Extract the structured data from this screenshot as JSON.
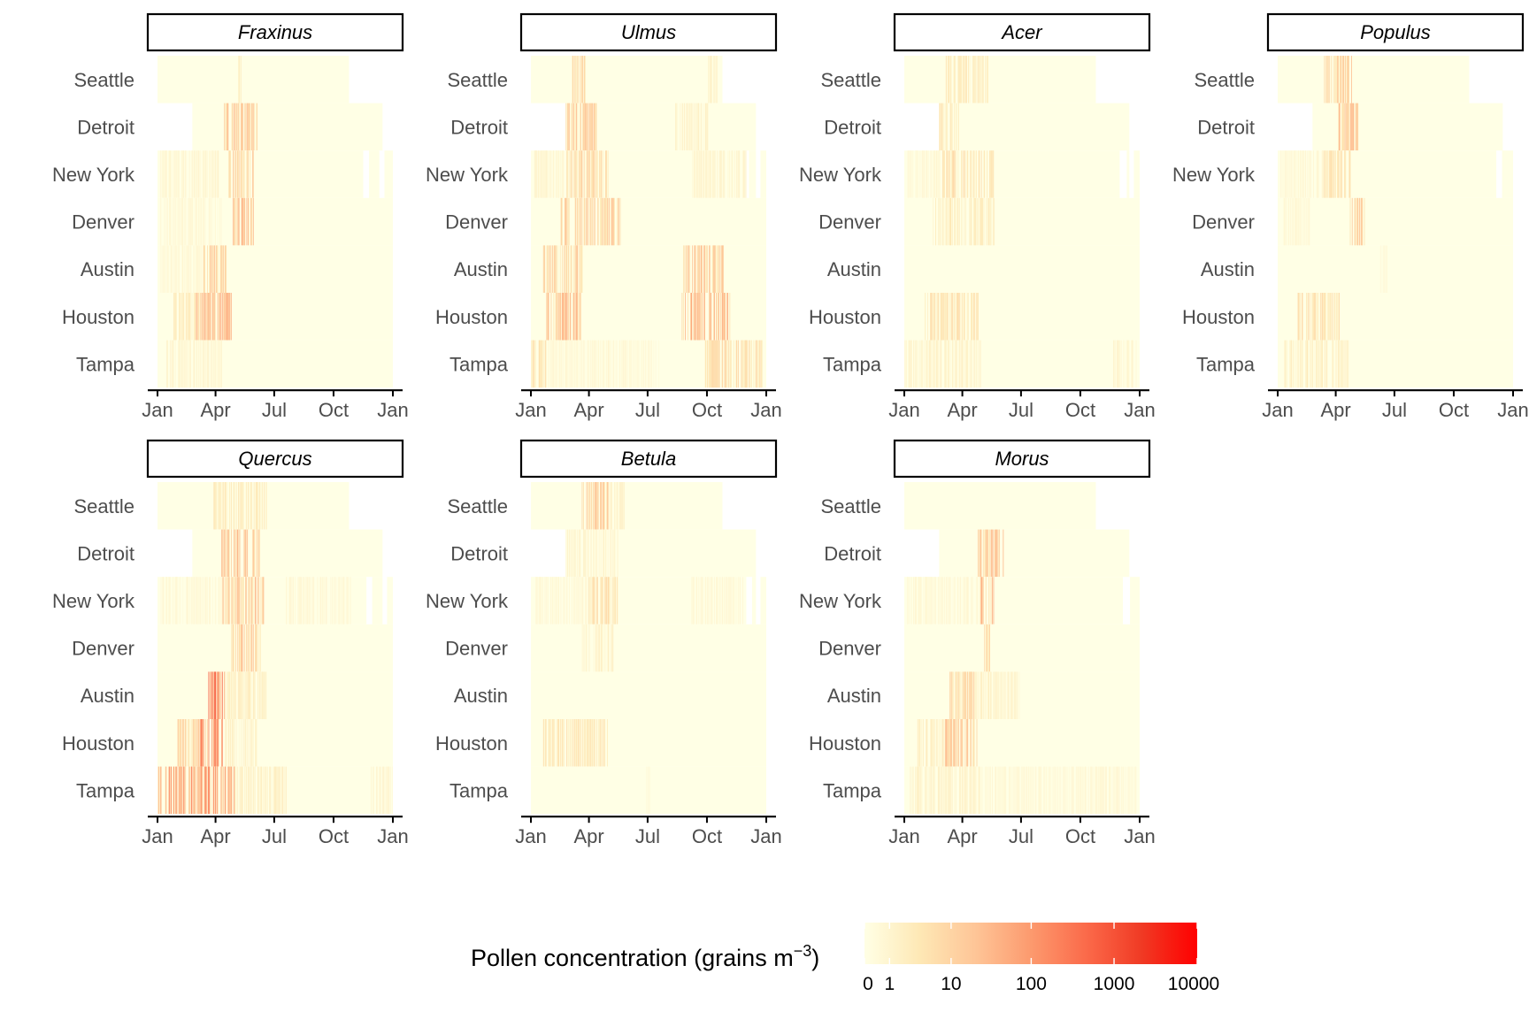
{
  "chart_data": {
    "type": "heatmap",
    "x_axis": {
      "tick_labels": [
        "Jan",
        "Apr",
        "Jul",
        "Oct",
        "Jan"
      ],
      "unit": "month"
    },
    "cities": [
      "Seattle",
      "Detroit",
      "New York",
      "Denver",
      "Austin",
      "Houston",
      "Tampa"
    ],
    "legend": {
      "title_main": "Pollen concentration (grains m",
      "title_exp": "−3",
      "title_end": ")",
      "scale": "log",
      "range": [
        0,
        10000
      ],
      "tick_labels": [
        "0",
        "1",
        "10",
        "100",
        "1000",
        "10000"
      ],
      "colors": [
        "#ffffe5",
        "#fee8b5",
        "#fec597",
        "#fc9a6e",
        "#fb6a4a",
        "#f03a24",
        "#ff0000"
      ]
    },
    "panels": [
      {
        "taxon": "Fraxinus",
        "coverage": {
          "Seattle": [
            1,
            297
          ],
          "Detroit": [
            55,
            349
          ],
          "New York": [
            1,
            365
          ],
          "Denver": [
            1,
            365
          ],
          "Austin": [
            1,
            365
          ],
          "Houston": [
            1,
            365
          ],
          "Tampa": [
            1,
            365
          ]
        },
        "gaps": {
          "New York": [
            [
              320,
              328
            ],
            [
              345,
              352
            ]
          ]
        },
        "peaks": {
          "Seattle": [
            {
              "start": 125,
              "end": 130,
              "log": 0.7
            }
          ],
          "Detroit": [
            {
              "start": 102,
              "end": 155,
              "log": 1.6
            }
          ],
          "New York": [
            {
              "start": 110,
              "end": 150,
              "log": 1.5
            },
            {
              "start": 5,
              "end": 95,
              "log": 0.4
            }
          ],
          "Denver": [
            {
              "start": 118,
              "end": 150,
              "log": 1.8
            },
            {
              "start": 5,
              "end": 100,
              "log": 0.3
            }
          ],
          "Austin": [
            {
              "start": 72,
              "end": 108,
              "log": 1.5
            },
            {
              "start": 5,
              "end": 70,
              "log": 0.3
            }
          ],
          "Houston": [
            {
              "start": 60,
              "end": 115,
              "log": 2.0
            },
            {
              "start": 25,
              "end": 60,
              "log": 0.8
            }
          ],
          "Tampa": [
            {
              "start": 15,
              "end": 100,
              "log": 0.4
            }
          ]
        }
      },
      {
        "taxon": "Ulmus",
        "coverage": {
          "Seattle": [
            1,
            297
          ],
          "Detroit": [
            55,
            349
          ],
          "New York": [
            1,
            365
          ],
          "Denver": [
            1,
            365
          ],
          "Austin": [
            1,
            365
          ],
          "Houston": [
            1,
            365
          ],
          "Tampa": [
            1,
            365
          ]
        },
        "gaps": {
          "New York": [
            [
              330,
              338
            ],
            [
              350,
              356
            ]
          ]
        },
        "peaks": {
          "Seattle": [
            {
              "start": 65,
              "end": 85,
              "log": 1.2
            },
            {
              "start": 275,
              "end": 290,
              "log": 0.5
            }
          ],
          "Detroit": [
            {
              "start": 55,
              "end": 105,
              "log": 1.6
            },
            {
              "start": 225,
              "end": 275,
              "log": 0.5
            }
          ],
          "New York": [
            {
              "start": 55,
              "end": 120,
              "log": 1.3
            },
            {
              "start": 5,
              "end": 55,
              "log": 0.4
            },
            {
              "start": 250,
              "end": 335,
              "log": 0.4
            }
          ],
          "Denver": [
            {
              "start": 45,
              "end": 140,
              "log": 1.5
            }
          ],
          "Austin": [
            {
              "start": 20,
              "end": 80,
              "log": 1.4
            },
            {
              "start": 235,
              "end": 300,
              "log": 1.6
            }
          ],
          "Houston": [
            {
              "start": 25,
              "end": 80,
              "log": 1.8
            },
            {
              "start": 235,
              "end": 310,
              "log": 2.0
            }
          ],
          "Tampa": [
            {
              "start": 1,
              "end": 25,
              "log": 1.0
            },
            {
              "start": 270,
              "end": 360,
              "log": 1.2
            },
            {
              "start": 25,
              "end": 200,
              "log": 0.3
            }
          ]
        }
      },
      {
        "taxon": "Acer",
        "coverage": {
          "Seattle": [
            1,
            297
          ],
          "Detroit": [
            55,
            349
          ],
          "New York": [
            1,
            365
          ],
          "Denver": [
            1,
            365
          ],
          "Austin": [
            1,
            365
          ],
          "Houston": [
            1,
            365
          ],
          "Tampa": [
            1,
            365
          ]
        },
        "gaps": {
          "New York": [
            [
              335,
              345
            ],
            [
              350,
              356
            ]
          ]
        },
        "peaks": {
          "Seattle": [
            {
              "start": 65,
              "end": 130,
              "log": 0.8
            }
          ],
          "Detroit": [
            {
              "start": 55,
              "end": 85,
              "log": 1.0
            }
          ],
          "New York": [
            {
              "start": 55,
              "end": 140,
              "log": 1.0
            },
            {
              "start": 5,
              "end": 55,
              "log": 0.3
            }
          ],
          "Denver": [
            {
              "start": 45,
              "end": 140,
              "log": 0.7
            }
          ],
          "Austin": [],
          "Houston": [
            {
              "start": 30,
              "end": 115,
              "log": 1.0
            }
          ],
          "Tampa": [
            {
              "start": 1,
              "end": 120,
              "log": 0.5
            },
            {
              "start": 325,
              "end": 360,
              "log": 0.4
            }
          ]
        }
      },
      {
        "taxon": "Populus",
        "coverage": {
          "Seattle": [
            1,
            297
          ],
          "Detroit": [
            55,
            349
          ],
          "New York": [
            1,
            365
          ],
          "Denver": [
            1,
            365
          ],
          "Austin": [
            1,
            365
          ],
          "Houston": [
            1,
            365
          ],
          "Tampa": [
            1,
            365
          ]
        },
        "gaps": {
          "New York": [
            [
              340,
              348
            ]
          ]
        },
        "peaks": {
          "Seattle": [
            {
              "start": 73,
              "end": 115,
              "log": 1.5
            }
          ],
          "Detroit": [
            {
              "start": 95,
              "end": 125,
              "log": 1.8
            }
          ],
          "New York": [
            {
              "start": 70,
              "end": 115,
              "log": 1.0
            },
            {
              "start": 5,
              "end": 70,
              "log": 0.3
            }
          ],
          "Denver": [
            {
              "start": 113,
              "end": 135,
              "log": 1.5
            },
            {
              "start": 10,
              "end": 50,
              "log": 0.3
            }
          ],
          "Austin": [
            {
              "start": 160,
              "end": 170,
              "log": 0.2
            }
          ],
          "Houston": [
            {
              "start": 30,
              "end": 100,
              "log": 1.0
            }
          ],
          "Tampa": [
            {
              "start": 10,
              "end": 110,
              "log": 0.6
            }
          ]
        }
      },
      {
        "taxon": "Quercus",
        "coverage": {
          "Seattle": [
            1,
            297
          ],
          "Detroit": [
            55,
            349
          ],
          "New York": [
            1,
            365
          ],
          "Denver": [
            1,
            365
          ],
          "Austin": [
            1,
            365
          ],
          "Houston": [
            1,
            365
          ],
          "Tampa": [
            1,
            365
          ]
        },
        "gaps": {
          "New York": [
            [
              325,
              333
            ],
            [
              350,
              356
            ]
          ]
        },
        "peaks": {
          "Seattle": [
            {
              "start": 85,
              "end": 170,
              "log": 0.8
            }
          ],
          "Detroit": [
            {
              "start": 100,
              "end": 160,
              "log": 1.8
            }
          ],
          "New York": [
            {
              "start": 100,
              "end": 165,
              "log": 1.6
            },
            {
              "start": 5,
              "end": 100,
              "log": 0.3
            },
            {
              "start": 200,
              "end": 300,
              "log": 0.3
            }
          ],
          "Denver": [
            {
              "start": 115,
              "end": 160,
              "log": 1.6
            }
          ],
          "Austin": [
            {
              "start": 80,
              "end": 105,
              "log": 3.2
            },
            {
              "start": 105,
              "end": 170,
              "log": 0.6
            }
          ],
          "Houston": [
            {
              "start": 65,
              "end": 105,
              "log": 3.0
            },
            {
              "start": 30,
              "end": 65,
              "log": 1.2
            },
            {
              "start": 105,
              "end": 160,
              "log": 0.6
            }
          ],
          "Tampa": [
            {
              "start": 1,
              "end": 120,
              "log": 2.4
            },
            {
              "start": 120,
              "end": 200,
              "log": 0.6
            },
            {
              "start": 330,
              "end": 365,
              "log": 0.4
            }
          ]
        }
      },
      {
        "taxon": "Betula",
        "coverage": {
          "Seattle": [
            1,
            297
          ],
          "Detroit": [
            55,
            349
          ],
          "New York": [
            1,
            365
          ],
          "Denver": [
            1,
            365
          ],
          "Austin": [
            1,
            365
          ],
          "Houston": [
            1,
            365
          ],
          "Tampa": [
            1,
            365
          ]
        },
        "gaps": {
          "New York": [
            [
              335,
              343
            ],
            [
              350,
              356
            ]
          ]
        },
        "peaks": {
          "Seattle": [
            {
              "start": 80,
              "end": 120,
              "log": 1.6
            },
            {
              "start": 120,
              "end": 145,
              "log": 0.5
            }
          ],
          "Detroit": [
            {
              "start": 55,
              "end": 135,
              "log": 0.4
            }
          ],
          "New York": [
            {
              "start": 90,
              "end": 135,
              "log": 1.0
            },
            {
              "start": 5,
              "end": 90,
              "log": 0.3
            },
            {
              "start": 250,
              "end": 330,
              "log": 0.3
            }
          ],
          "Denver": [
            {
              "start": 80,
              "end": 130,
              "log": 0.5
            }
          ],
          "Austin": [],
          "Houston": [
            {
              "start": 20,
              "end": 120,
              "log": 0.9
            }
          ],
          "Tampa": [
            {
              "start": 180,
              "end": 185,
              "log": 0.2
            }
          ]
        }
      },
      {
        "taxon": "Morus",
        "coverage": {
          "Seattle": [
            1,
            297
          ],
          "Detroit": [
            55,
            349
          ],
          "New York": [
            1,
            365
          ],
          "Denver": [
            1,
            365
          ],
          "Austin": [
            1,
            365
          ],
          "Houston": [
            1,
            365
          ],
          "Tampa": [
            1,
            365
          ]
        },
        "gaps": {
          "New York": [
            [
              340,
              350
            ]
          ]
        },
        "peaks": {
          "Seattle": [],
          "Detroit": [
            {
              "start": 115,
              "end": 155,
              "log": 1.6
            }
          ],
          "New York": [
            {
              "start": 118,
              "end": 140,
              "log": 1.8
            },
            {
              "start": 5,
              "end": 118,
              "log": 0.3
            }
          ],
          "Denver": [
            {
              "start": 125,
              "end": 135,
              "log": 1.2
            }
          ],
          "Austin": [
            {
              "start": 70,
              "end": 110,
              "log": 1.3
            },
            {
              "start": 110,
              "end": 180,
              "log": 0.5
            }
          ],
          "Houston": [
            {
              "start": 60,
              "end": 115,
              "log": 1.5
            },
            {
              "start": 20,
              "end": 60,
              "log": 0.6
            }
          ],
          "Tampa": [
            {
              "start": 10,
              "end": 120,
              "log": 0.5
            },
            {
              "start": 120,
              "end": 360,
              "log": 0.3
            }
          ]
        }
      }
    ]
  }
}
